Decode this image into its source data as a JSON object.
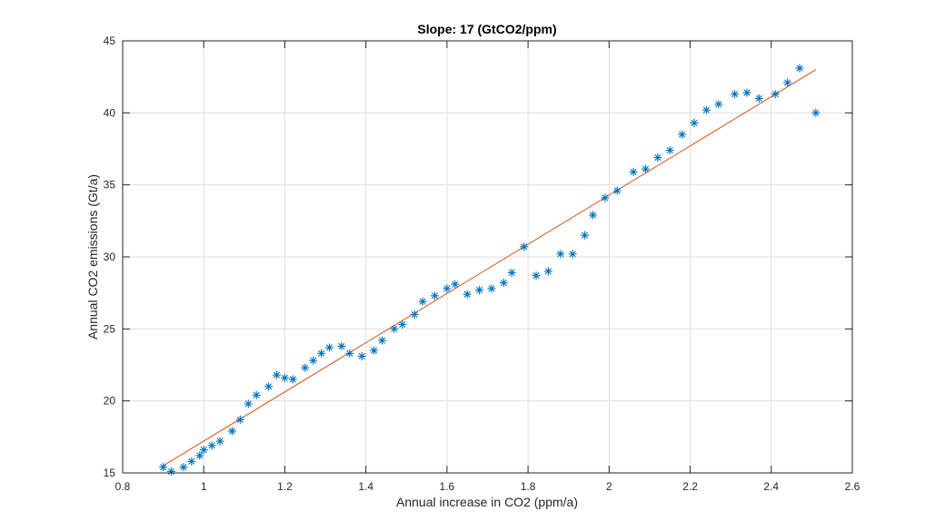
{
  "chart_data": {
    "type": "scatter",
    "title": "Slope: 17 (GtCO2/ppm)",
    "xlabel": "Annual increase in CO2 (ppm/a)",
    "ylabel": "Annual CO2 emissions (Gt/a)",
    "xlim": [
      0.8,
      2.6
    ],
    "ylim": [
      15,
      45
    ],
    "xticks": [
      "0.8",
      "1",
      "1.2",
      "1.4",
      "1.6",
      "1.8",
      "2",
      "2.2",
      "2.4",
      "2.6"
    ],
    "yticks": [
      "15",
      "20",
      "25",
      "30",
      "35",
      "40",
      "45"
    ],
    "grid": true,
    "series": [
      {
        "marker": "asterisk",
        "color": "#0072bd",
        "points": [
          [
            0.9,
            15.4
          ],
          [
            0.92,
            15.1
          ],
          [
            0.95,
            15.4
          ],
          [
            0.97,
            15.8
          ],
          [
            0.99,
            16.2
          ],
          [
            1.0,
            16.6
          ],
          [
            1.02,
            16.9
          ],
          [
            1.04,
            17.2
          ],
          [
            1.07,
            17.9
          ],
          [
            1.09,
            18.7
          ],
          [
            1.11,
            19.8
          ],
          [
            1.13,
            20.4
          ],
          [
            1.16,
            21.0
          ],
          [
            1.18,
            21.8
          ],
          [
            1.2,
            21.6
          ],
          [
            1.22,
            21.5
          ],
          [
            1.25,
            22.3
          ],
          [
            1.27,
            22.8
          ],
          [
            1.29,
            23.3
          ],
          [
            1.31,
            23.7
          ],
          [
            1.34,
            23.8
          ],
          [
            1.36,
            23.3
          ],
          [
            1.39,
            23.1
          ],
          [
            1.42,
            23.5
          ],
          [
            1.44,
            24.2
          ],
          [
            1.47,
            25.0
          ],
          [
            1.49,
            25.3
          ],
          [
            1.52,
            26.0
          ],
          [
            1.54,
            26.9
          ],
          [
            1.57,
            27.3
          ],
          [
            1.6,
            27.8
          ],
          [
            1.62,
            28.1
          ],
          [
            1.65,
            27.4
          ],
          [
            1.68,
            27.7
          ],
          [
            1.71,
            27.8
          ],
          [
            1.74,
            28.2
          ],
          [
            1.76,
            28.9
          ],
          [
            1.79,
            30.7
          ],
          [
            1.82,
            28.7
          ],
          [
            1.85,
            29.0
          ],
          [
            1.88,
            30.2
          ],
          [
            1.91,
            30.2
          ],
          [
            1.94,
            31.5
          ],
          [
            1.96,
            32.9
          ],
          [
            1.99,
            34.1
          ],
          [
            2.02,
            34.6
          ],
          [
            2.06,
            35.9
          ],
          [
            2.09,
            36.1
          ],
          [
            2.12,
            36.9
          ],
          [
            2.15,
            37.4
          ],
          [
            2.18,
            38.5
          ],
          [
            2.21,
            39.3
          ],
          [
            2.24,
            40.2
          ],
          [
            2.27,
            40.6
          ],
          [
            2.31,
            41.3
          ],
          [
            2.34,
            41.4
          ],
          [
            2.37,
            41.0
          ],
          [
            2.41,
            41.3
          ],
          [
            2.44,
            42.1
          ],
          [
            2.47,
            43.1
          ],
          [
            2.51,
            40.0
          ]
        ]
      },
      {
        "type": "line",
        "color": "#d95319",
        "x": [
          0.9,
          2.51
        ],
        "y": [
          15.5,
          43.0
        ]
      }
    ]
  }
}
